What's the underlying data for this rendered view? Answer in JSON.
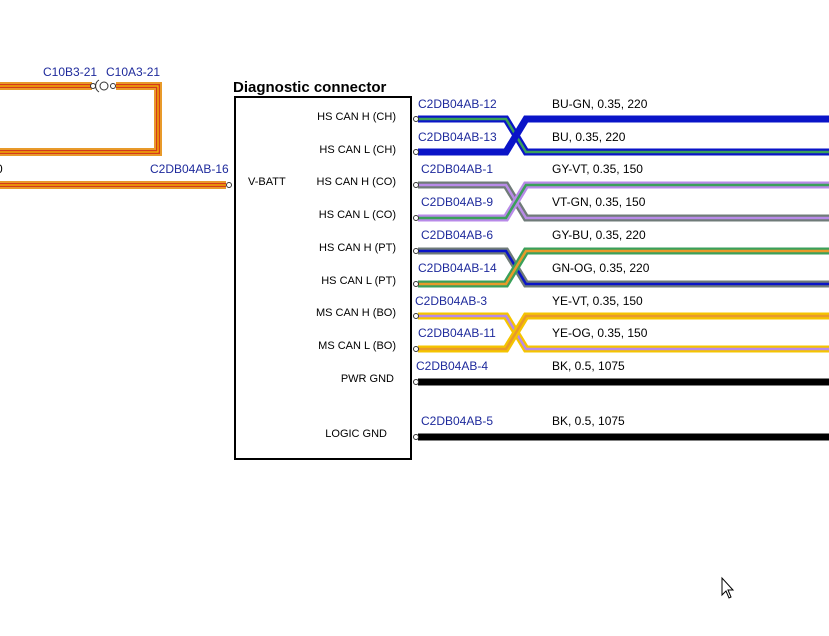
{
  "diagram": {
    "title": "Diagnostic connector",
    "vbatt_label": "V-BATT",
    "vbatt_connector": "C2DB04AB-16",
    "splice_labels": [
      "C10B3-21",
      "C10A3-21"
    ],
    "left_cut_text": "0",
    "colors": {
      "BU": "#0a14c8",
      "GN": "#3aa05a",
      "GY": "#6f7b78",
      "VT": "#b88ae8",
      "OG": "#e89a2a",
      "YE": "#f5c400",
      "BK": "#000000",
      "RD": "#d43a1a",
      "conn_text": "#1e2a9c"
    },
    "pins": [
      {
        "label": "HS CAN H (CH)",
        "connector": "C2DB04AB-12",
        "spec": "BU-GN,  0.35,  220"
      },
      {
        "label": "HS CAN L (CH)",
        "connector": "C2DB04AB-13",
        "spec": "BU,  0.35,  220"
      },
      {
        "label": "HS CAN H (CO)",
        "connector": "C2DB04AB-1",
        "spec": "GY-VT,  0.35,  150"
      },
      {
        "label": "HS CAN L (CO)",
        "connector": "C2DB04AB-9",
        "spec": "VT-GN,  0.35,  150"
      },
      {
        "label": "HS CAN H (PT)",
        "connector": "C2DB04AB-6",
        "spec": "GY-BU,  0.35,  220"
      },
      {
        "label": "HS CAN L (PT)",
        "connector": "C2DB04AB-14",
        "spec": "GN-OG,  0.35,  220"
      },
      {
        "label": "MS CAN H (BO)",
        "connector": "C2DB04AB-3",
        "spec": "YE-VT,  0.35,  150"
      },
      {
        "label": "MS CAN L (BO)",
        "connector": "C2DB04AB-11",
        "spec": "YE-OG,  0.35,  150"
      },
      {
        "label": "PWR GND",
        "connector": "C2DB04AB-4",
        "spec": "BK,  0.5,  1075"
      },
      {
        "label": "LOGIC GND",
        "connector": "C2DB04AB-5",
        "spec": "BK,  0.5,  1075"
      }
    ]
  }
}
